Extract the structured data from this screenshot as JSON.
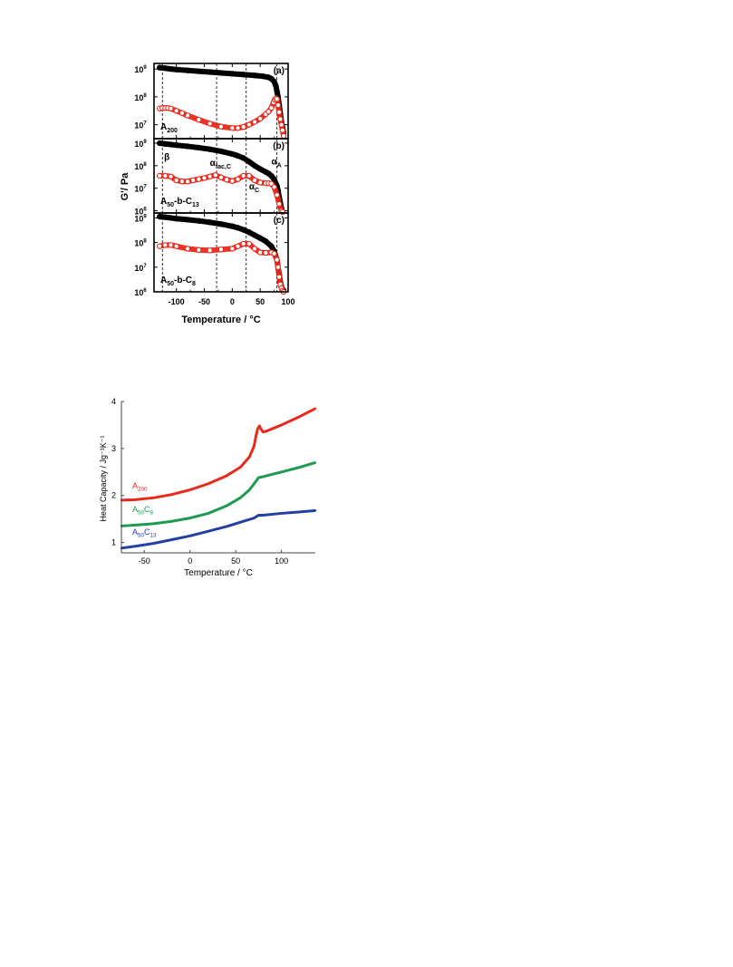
{
  "chart_data": [
    {
      "type": "scatter",
      "ylabel": "G'/ Pa",
      "xlabel": "Temperature / °C",
      "xlim": [
        -140,
        100
      ],
      "x_ticks": [
        "-100",
        "-50",
        "0",
        "50",
        "100"
      ],
      "y_tick_labels": {
        "e6": "10",
        "e7": "10",
        "e8": "10",
        "e9": "10",
        "exp6": "6",
        "exp7": "7",
        "exp8": "8",
        "exp9": "9"
      },
      "x_minor_ticks": [
        -125,
        -75,
        -25,
        25,
        75
      ],
      "ref_lines_x": [
        -125,
        -28,
        25,
        80
      ],
      "log_scale_y": true,
      "grid": false,
      "panels": [
        {
          "panel_label": "(a)",
          "sample_label": {
            "base": "A",
            "sub": "200"
          },
          "ylim_log": [
            6.5,
            9.2
          ],
          "y_ticks_exp": [
            7,
            8,
            9
          ],
          "series": [
            {
              "color": "#000000",
              "fill": true,
              "x": [
                -130,
                -120,
                -110,
                -100,
                -80,
                -60,
                -40,
                -20,
                0,
                20,
                40,
                55,
                65,
                70,
                75,
                78,
                80,
                82,
                84,
                86,
                88,
                90,
                92
              ],
              "y": [
                9.05,
                9.03,
                9.0,
                8.98,
                8.95,
                8.92,
                8.89,
                8.86,
                8.83,
                8.8,
                8.77,
                8.74,
                8.7,
                8.65,
                8.55,
                8.4,
                8.2,
                8.0,
                7.7,
                7.4,
                7.1,
                6.9,
                6.7
              ]
            },
            {
              "color": "#e8291c",
              "fill": false,
              "x": [
                -130,
                -125,
                -120,
                -115,
                -110,
                -100,
                -90,
                -80,
                -60,
                -40,
                -20,
                0,
                10,
                20,
                30,
                40,
                50,
                60,
                65,
                70,
                74,
                76,
                78,
                80,
                82,
                84,
                86,
                88,
                90,
                92
              ],
              "y": [
                7.58,
                7.6,
                7.6,
                7.6,
                7.58,
                7.5,
                7.42,
                7.33,
                7.18,
                7.04,
                6.93,
                6.88,
                6.88,
                6.92,
                7.0,
                7.1,
                7.22,
                7.38,
                7.47,
                7.6,
                7.8,
                7.9,
                7.95,
                7.92,
                7.7,
                7.45,
                7.2,
                7.0,
                6.8,
                6.6
              ]
            }
          ]
        },
        {
          "panel_label": "(b)",
          "sample_label": {
            "base": "A",
            "sub1": "50",
            "mid": "-b-C",
            "sub2": "13"
          },
          "ylim_log": [
            5.9,
            9.2
          ],
          "y_ticks_exp": [
            6,
            7,
            8,
            9
          ],
          "annotations": [
            {
              "base": "β",
              "sub": "",
              "x": -122,
              "y_exp": 8.25
            },
            {
              "base": "α",
              "sub": "fac,C",
              "x": -40,
              "y_exp": 8.0
            },
            {
              "base": "α",
              "sub": "C",
              "x": 30,
              "y_exp": 6.95
            },
            {
              "base": "α",
              "sub": "A",
              "x": 70,
              "y_exp": 8.05
            }
          ],
          "series": [
            {
              "color": "#000000",
              "fill": true,
              "x": [
                -130,
                -120,
                -110,
                -100,
                -80,
                -60,
                -40,
                -20,
                0,
                10,
                20,
                30,
                40,
                50,
                60,
                65,
                70,
                75,
                80,
                82,
                84,
                86,
                88,
                90
              ],
              "y": [
                9.0,
                8.97,
                8.94,
                8.91,
                8.86,
                8.8,
                8.73,
                8.64,
                8.52,
                8.44,
                8.34,
                8.18,
                8.0,
                7.85,
                7.72,
                7.65,
                7.55,
                7.4,
                7.1,
                6.9,
                6.6,
                6.35,
                6.1,
                5.95
              ]
            },
            {
              "color": "#e8291c",
              "fill": false,
              "x": [
                -130,
                -120,
                -110,
                -100,
                -90,
                -80,
                -70,
                -60,
                -50,
                -40,
                -30,
                -20,
                -10,
                0,
                10,
                20,
                30,
                40,
                50,
                60,
                65,
                70,
                75,
                80,
                84,
                88,
                90
              ],
              "y": [
                7.55,
                7.55,
                7.52,
                7.35,
                7.3,
                7.3,
                7.35,
                7.4,
                7.45,
                7.52,
                7.58,
                7.48,
                7.38,
                7.32,
                7.4,
                7.55,
                7.55,
                7.35,
                7.25,
                7.22,
                7.22,
                7.2,
                7.05,
                6.7,
                6.3,
                6.0,
                5.95
              ]
            }
          ]
        },
        {
          "panel_label": "(c)",
          "sample_label": {
            "base": "A",
            "sub1": "50",
            "mid": "-b-C",
            "sub2": "8"
          },
          "ylim_log": [
            6.0,
            9.2
          ],
          "y_ticks_exp": [
            6,
            7,
            8,
            9
          ],
          "series": [
            {
              "color": "#000000",
              "fill": true,
              "x": [
                -130,
                -120,
                -110,
                -100,
                -80,
                -60,
                -40,
                -20,
                0,
                10,
                20,
                30,
                40,
                50,
                60,
                70,
                75,
                80,
                82,
                84,
                86,
                88,
                90,
                92
              ],
              "y": [
                9.05,
                9.03,
                9.0,
                8.97,
                8.93,
                8.88,
                8.82,
                8.75,
                8.66,
                8.6,
                8.52,
                8.42,
                8.3,
                8.18,
                8.05,
                7.85,
                7.65,
                7.3,
                7.0,
                6.7,
                6.4,
                6.2,
                6.1,
                6.05
              ]
            },
            {
              "color": "#e8291c",
              "fill": false,
              "x": [
                -130,
                -120,
                -110,
                -100,
                -80,
                -60,
                -40,
                -20,
                0,
                10,
                20,
                30,
                40,
                50,
                60,
                70,
                75,
                80,
                82,
                84,
                86,
                88,
                90,
                92
              ],
              "y": [
                7.85,
                7.9,
                7.9,
                7.85,
                7.75,
                7.7,
                7.68,
                7.72,
                7.75,
                7.85,
                7.95,
                7.95,
                7.75,
                7.6,
                7.58,
                7.6,
                7.55,
                7.3,
                7.0,
                6.6,
                6.3,
                6.15,
                6.05,
                6.0
              ]
            }
          ]
        }
      ]
    },
    {
      "type": "line",
      "xlabel": "Temperature / °C",
      "ylabel": "Heat Capacity / Jg⁻¹K⁻¹",
      "xlim": [
        -75,
        137
      ],
      "ylim": [
        0.78,
        4.0
      ],
      "x_ticks": [
        "-50",
        "0",
        "50",
        "100"
      ],
      "y_ticks": [
        "1",
        "2",
        "3",
        "4"
      ],
      "grid": false,
      "series": [
        {
          "color": "#e8291c",
          "label": {
            "base": "A",
            "sub": "200"
          },
          "x": [
            -75,
            -60,
            -40,
            -20,
            0,
            20,
            40,
            55,
            65,
            70,
            72,
            74,
            76,
            78,
            80,
            85,
            100,
            120,
            137
          ],
          "y": [
            1.9,
            1.91,
            1.95,
            2.02,
            2.12,
            2.25,
            2.42,
            2.6,
            2.82,
            3.05,
            3.25,
            3.42,
            3.48,
            3.4,
            3.35,
            3.38,
            3.5,
            3.68,
            3.85
          ]
        },
        {
          "color": "#1e9a4f",
          "label": {
            "base": "A",
            "sub1": "50",
            "mid": "C",
            "sub2": "8"
          },
          "x": [
            -75,
            -60,
            -40,
            -20,
            0,
            20,
            40,
            55,
            65,
            70,
            75,
            80,
            100,
            120,
            137
          ],
          "y": [
            1.35,
            1.37,
            1.4,
            1.45,
            1.52,
            1.62,
            1.78,
            1.95,
            2.12,
            2.25,
            2.38,
            2.4,
            2.5,
            2.6,
            2.7
          ]
        },
        {
          "color": "#2340a0",
          "label": {
            "base": "A",
            "sub1": "50",
            "mid": "C",
            "sub2": "13"
          },
          "x": [
            -75,
            -60,
            -40,
            -20,
            0,
            20,
            40,
            60,
            70,
            75,
            80,
            100,
            120,
            137
          ],
          "y": [
            0.88,
            0.92,
            0.98,
            1.06,
            1.14,
            1.24,
            1.34,
            1.46,
            1.52,
            1.58,
            1.58,
            1.62,
            1.65,
            1.68
          ]
        }
      ]
    }
  ]
}
